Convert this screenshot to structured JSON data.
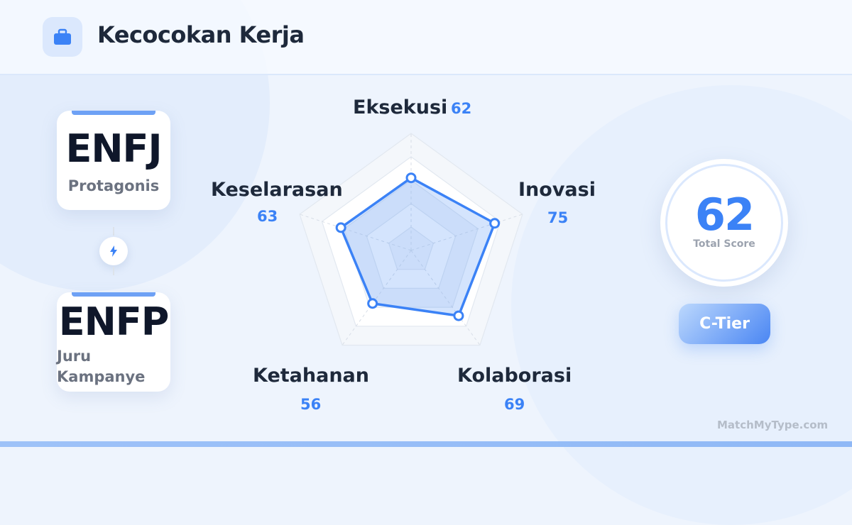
{
  "header": {
    "title": "Kecocokan Kerja",
    "icon": "briefcase-icon"
  },
  "types": [
    {
      "code": "ENFJ",
      "name": "Protagonis"
    },
    {
      "code": "ENFP",
      "name": "Juru Kampanye"
    }
  ],
  "link_icon": "lightning-icon",
  "score": {
    "value": "62",
    "label": "Total Score"
  },
  "tier": {
    "label": "C-Tier"
  },
  "brand": "MatchMyType.com",
  "colors": {
    "accent": "#3b82f6",
    "text": "#1e293b",
    "muted": "#6b7280"
  },
  "chart_data": {
    "type": "radar",
    "categories": [
      "Eksekusi",
      "Inovasi",
      "Kolaborasi",
      "Ketahanan",
      "Keselarasan"
    ],
    "values": [
      62,
      75,
      69,
      56,
      63
    ],
    "value_labels": [
      "62",
      "75",
      "69",
      "56",
      "63"
    ],
    "range": [
      0,
      100
    ],
    "grid_levels": 5,
    "color": "#3b82f6"
  }
}
